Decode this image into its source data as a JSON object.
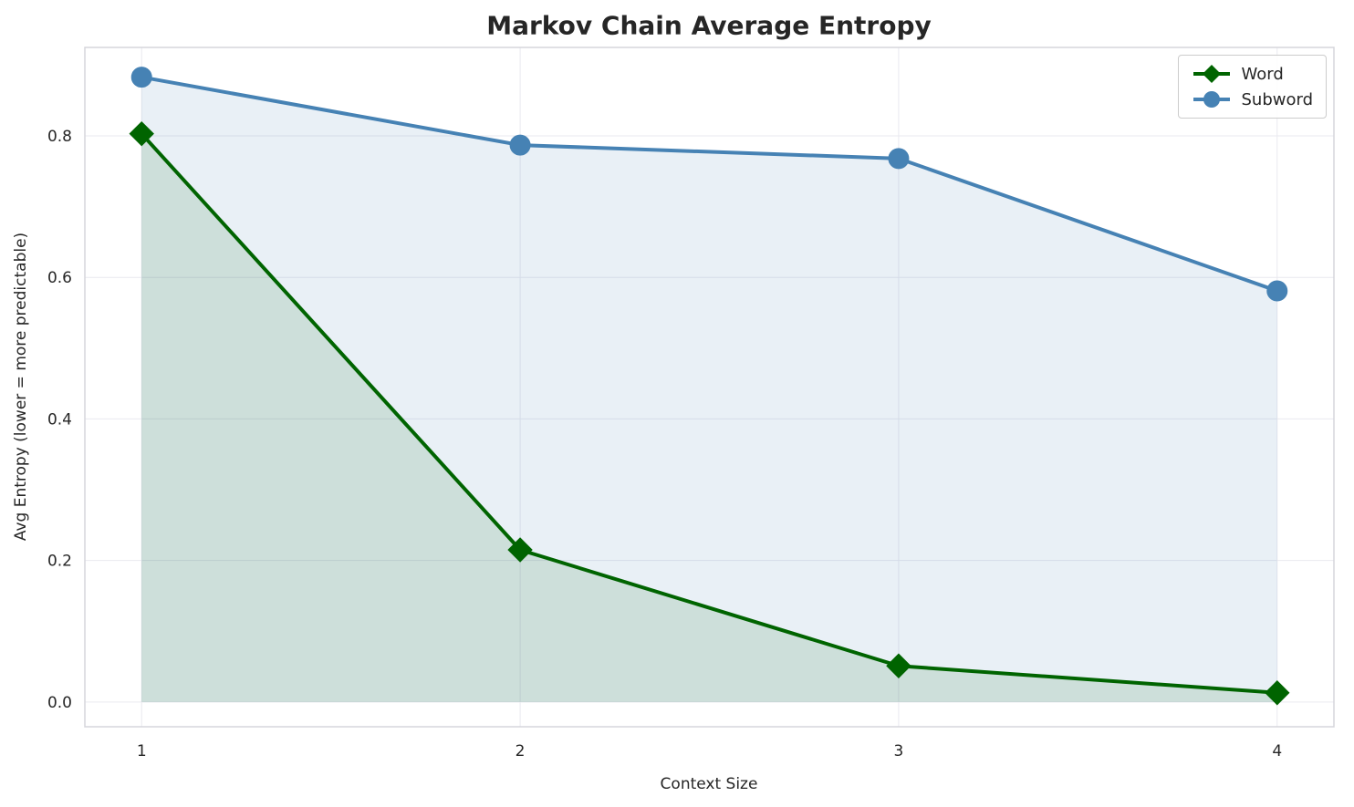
{
  "title": "Markov Chain Average Entropy",
  "chart_data": {
    "type": "line",
    "x": [
      1,
      2,
      3,
      4
    ],
    "series": [
      {
        "name": "Word",
        "values": [
          0.803,
          0.215,
          0.051,
          0.013
        ],
        "color": "#006400",
        "fill_color": "#006400",
        "fill_opacity": 0.12,
        "marker": "diamond"
      },
      {
        "name": "Subword",
        "values": [
          0.883,
          0.787,
          0.768,
          0.581
        ],
        "color": "#4682b4",
        "fill_color": "#4682b4",
        "fill_opacity": 0.12,
        "marker": "circle"
      }
    ],
    "title": "Markov Chain Average Entropy",
    "xlabel": "Context Size",
    "ylabel": "Avg Entropy (lower = more predictable)",
    "xticks": [
      1,
      2,
      3,
      4
    ],
    "yticks": [
      0.0,
      0.2,
      0.4,
      0.6,
      0.8
    ],
    "xlim": [
      0.85,
      4.15
    ],
    "ylim": [
      -0.035,
      0.925
    ],
    "grid": true,
    "legend": {
      "position": "top-right",
      "entries": [
        "Word",
        "Subword"
      ]
    },
    "colors": {
      "grid": "#e9e9ef",
      "spine": "#d5d5dc",
      "tick_label": "#262626"
    }
  }
}
